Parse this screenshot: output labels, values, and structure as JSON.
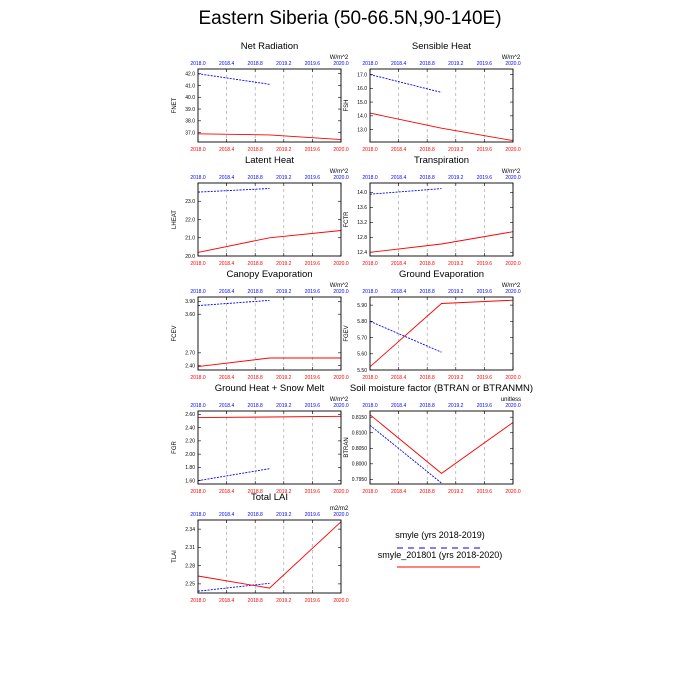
{
  "title": "Eastern Siberia (50-66.5N,90-140E)",
  "x_ticks": [
    "2018.0",
    "2018.4",
    "2018.8",
    "2019.2",
    "2019.6",
    "2020.0"
  ],
  "x_range": [
    2018.0,
    2020.0
  ],
  "colors": {
    "series1": "#0000ff",
    "series2": "#ff0000",
    "top_axis": "#0000ff",
    "bottom_axis": "#ff0000"
  },
  "legend": [
    {
      "label": "smyle (yrs 2018-2019)",
      "color": "#0000ff",
      "dash": true
    },
    {
      "label": "smyle_201801 (yrs 2018-2020)",
      "color": "#ff0000",
      "dash": false
    }
  ],
  "chart_data": [
    {
      "type": "line",
      "title": "Net Radiation",
      "ylabel": "FNET",
      "units": "W/m^2",
      "y_ticks": [
        "37.0",
        "38.0",
        "39.0",
        "40.0",
        "41.0",
        "42.0"
      ],
      "ylim": [
        36.2,
        42.4
      ],
      "series": [
        {
          "x": [
            2018.0,
            2019.0
          ],
          "values": [
            42.0,
            41.1
          ]
        },
        {
          "x": [
            2018.0,
            2019.0,
            2020.0
          ],
          "values": [
            36.9,
            36.8,
            36.4
          ]
        }
      ]
    },
    {
      "type": "line",
      "title": "Sensible Heat",
      "ylabel": "FSH",
      "units": "W/m^2",
      "y_ticks": [
        "13.0",
        "14.0",
        "15.0",
        "16.0",
        "17.0"
      ],
      "ylim": [
        12.1,
        17.4
      ],
      "series": [
        {
          "x": [
            2018.0,
            2019.0
          ],
          "values": [
            17.0,
            15.7
          ]
        },
        {
          "x": [
            2018.0,
            2019.0,
            2020.0
          ],
          "values": [
            14.2,
            13.1,
            12.2
          ]
        }
      ]
    },
    {
      "type": "line",
      "title": "Latent Heat",
      "ylabel": "LHEAT",
      "units": "W/m^2",
      "y_ticks": [
        "20.0",
        "21.0",
        "22.0",
        "23.0"
      ],
      "ylim": [
        20.0,
        24.0
      ],
      "series": [
        {
          "x": [
            2018.0,
            2019.0
          ],
          "values": [
            23.5,
            23.7
          ]
        },
        {
          "x": [
            2018.0,
            2019.0,
            2020.0
          ],
          "values": [
            20.2,
            21.0,
            21.4
          ]
        }
      ]
    },
    {
      "type": "line",
      "title": "Transpiration",
      "ylabel": "FCTR",
      "units": "W/m^2",
      "y_ticks": [
        "12.4",
        "12.8",
        "13.2",
        "13.6",
        "14.0"
      ],
      "ylim": [
        12.3,
        14.25
      ],
      "series": [
        {
          "x": [
            2018.0,
            2019.0
          ],
          "values": [
            13.95,
            14.1
          ]
        },
        {
          "x": [
            2018.0,
            2019.0,
            2020.0
          ],
          "values": [
            12.4,
            12.62,
            12.95
          ]
        }
      ]
    },
    {
      "type": "line",
      "title": "Canopy Evaporation",
      "ylabel": "FCEV",
      "units": "W/m^2",
      "y_ticks": [
        "2.40",
        "2.70",
        "3.60",
        "3.90"
      ],
      "ylim": [
        2.3,
        4.0
      ],
      "y_tick_values": [
        2.4,
        2.7,
        3.6,
        3.9
      ],
      "series": [
        {
          "x": [
            2018.0,
            2019.0
          ],
          "values": [
            3.8,
            3.92
          ]
        },
        {
          "x": [
            2018.0,
            2019.0,
            2020.0
          ],
          "values": [
            2.38,
            2.58,
            2.58
          ]
        }
      ]
    },
    {
      "type": "line",
      "title": "Ground Evaporation",
      "ylabel": "FGEV",
      "units": "W/m^2",
      "y_ticks": [
        "5.50",
        "5.60",
        "5.70",
        "5.80",
        "5.90"
      ],
      "ylim": [
        5.5,
        5.95
      ],
      "series": [
        {
          "x": [
            2018.0,
            2019.0
          ],
          "values": [
            5.8,
            5.61
          ]
        },
        {
          "x": [
            2018.0,
            2019.0,
            2020.0
          ],
          "values": [
            5.52,
            5.91,
            5.93
          ]
        }
      ]
    },
    {
      "type": "line",
      "title": "Ground Heat + Snow Melt",
      "ylabel": "FGR",
      "units": "W/m^2",
      "y_ticks": [
        "1.60",
        "1.80",
        "2.00",
        "2.20",
        "2.40",
        "2.60"
      ],
      "ylim": [
        1.55,
        2.65
      ],
      "series": [
        {
          "x": [
            2018.0,
            2019.0
          ],
          "values": [
            1.6,
            1.78
          ]
        },
        {
          "x": [
            2018.0,
            2019.0,
            2020.0
          ],
          "values": [
            2.55,
            2.56,
            2.57
          ]
        }
      ]
    },
    {
      "type": "line",
      "title": "Soil moisture factor (BTRAN or BTRANMN)",
      "ylabel": "BTRAN",
      "units": "unitless",
      "y_ticks": [
        "0.7950",
        "0.8000",
        "0.8050",
        "0.8100",
        "0.8150"
      ],
      "ylim": [
        0.7935,
        0.817
      ],
      "series": [
        {
          "x": [
            2018.0,
            2019.0
          ],
          "values": [
            0.8124,
            0.7938
          ]
        },
        {
          "x": [
            2018.0,
            2019.0,
            2020.0
          ],
          "values": [
            0.8158,
            0.7969,
            0.8133
          ]
        }
      ]
    },
    {
      "type": "line",
      "title": "Total LAI",
      "ylabel": "TLAI",
      "units": "m2/m2",
      "y_ticks": [
        "2.25",
        "2.28",
        "2.31",
        "2.34"
      ],
      "ylim": [
        2.235,
        2.355
      ],
      "series": [
        {
          "x": [
            2018.0,
            2019.0
          ],
          "values": [
            2.238,
            2.251
          ]
        },
        {
          "x": [
            2018.0,
            2019.0,
            2020.0
          ],
          "values": [
            2.263,
            2.243,
            2.352
          ]
        }
      ]
    }
  ]
}
